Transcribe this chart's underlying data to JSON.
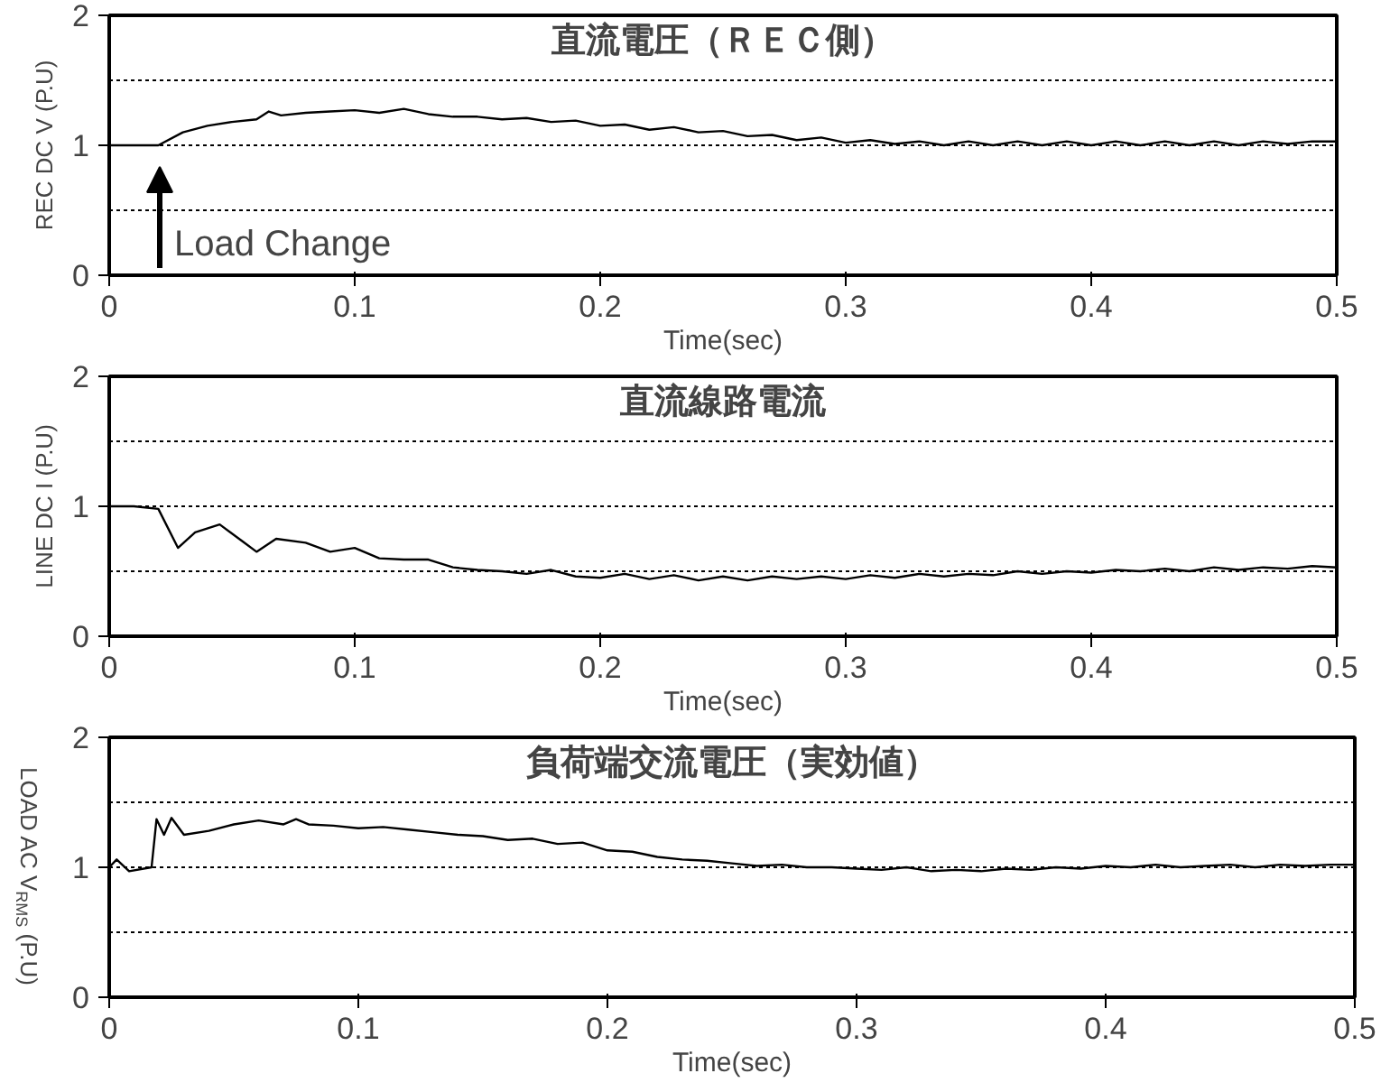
{
  "chart_data": [
    {
      "type": "line",
      "title": "直流電圧（ＲＥＣ側）",
      "xlabel": "Time(sec)",
      "ylabel": "REC DC V (P.U)",
      "color": "#000000",
      "xlim": [
        0,
        0.5
      ],
      "ylim": [
        0,
        2
      ],
      "xticks": [
        0,
        0.1,
        0.2,
        0.3,
        0.4,
        0.5
      ],
      "yticks": [
        0,
        1,
        2
      ],
      "grid": "y",
      "annotations": [
        "Load Change"
      ],
      "ref_lines": [
        {
          "axis": "y",
          "value": 0.5,
          "line_style": "dotted"
        },
        {
          "axis": "y",
          "value": 1.5,
          "line_style": "dotted"
        }
      ],
      "x": [
        0,
        0.01,
        0.02,
        0.03,
        0.04,
        0.05,
        0.06,
        0.065,
        0.07,
        0.08,
        0.09,
        0.1,
        0.11,
        0.12,
        0.13,
        0.14,
        0.15,
        0.16,
        0.17,
        0.18,
        0.19,
        0.2,
        0.21,
        0.22,
        0.23,
        0.24,
        0.25,
        0.26,
        0.27,
        0.28,
        0.29,
        0.3,
        0.31,
        0.32,
        0.33,
        0.34,
        0.35,
        0.36,
        0.37,
        0.38,
        0.39,
        0.4,
        0.41,
        0.42,
        0.43,
        0.44,
        0.45,
        0.46,
        0.47,
        0.48,
        0.49,
        0.5
      ],
      "values": [
        1.0,
        1.0,
        1.0,
        1.1,
        1.15,
        1.18,
        1.2,
        1.26,
        1.23,
        1.25,
        1.26,
        1.27,
        1.25,
        1.28,
        1.24,
        1.22,
        1.22,
        1.2,
        1.21,
        1.18,
        1.19,
        1.15,
        1.16,
        1.12,
        1.14,
        1.1,
        1.11,
        1.07,
        1.08,
        1.04,
        1.06,
        1.02,
        1.04,
        1.01,
        1.03,
        1.0,
        1.03,
        1.0,
        1.03,
        1.0,
        1.03,
        1.0,
        1.03,
        1.0,
        1.03,
        1.0,
        1.03,
        1.0,
        1.03,
        1.01,
        1.03,
        1.03
      ]
    },
    {
      "type": "line",
      "title": "直流線路電流",
      "xlabel": "Time(sec)",
      "ylabel": "LINE DC I (P.U)",
      "color": "#000000",
      "xlim": [
        0,
        0.5
      ],
      "ylim": [
        0,
        2
      ],
      "xticks": [
        0,
        0.1,
        0.2,
        0.3,
        0.4,
        0.5
      ],
      "yticks": [
        0,
        1,
        2
      ],
      "grid": "y",
      "ref_lines": [
        {
          "axis": "y",
          "value": 0.5,
          "line_style": "dotted"
        },
        {
          "axis": "y",
          "value": 1.5,
          "line_style": "dotted"
        }
      ],
      "x": [
        0,
        0.01,
        0.02,
        0.028,
        0.035,
        0.045,
        0.055,
        0.06,
        0.068,
        0.08,
        0.09,
        0.1,
        0.11,
        0.12,
        0.13,
        0.14,
        0.15,
        0.16,
        0.17,
        0.18,
        0.19,
        0.2,
        0.21,
        0.22,
        0.23,
        0.24,
        0.25,
        0.26,
        0.27,
        0.28,
        0.29,
        0.3,
        0.31,
        0.32,
        0.33,
        0.34,
        0.35,
        0.36,
        0.37,
        0.38,
        0.39,
        0.4,
        0.41,
        0.42,
        0.43,
        0.44,
        0.45,
        0.46,
        0.47,
        0.48,
        0.49,
        0.5
      ],
      "values": [
        1.0,
        1.0,
        0.98,
        0.68,
        0.8,
        0.86,
        0.72,
        0.65,
        0.75,
        0.72,
        0.65,
        0.68,
        0.6,
        0.59,
        0.59,
        0.53,
        0.51,
        0.5,
        0.48,
        0.51,
        0.46,
        0.45,
        0.48,
        0.44,
        0.47,
        0.43,
        0.46,
        0.43,
        0.46,
        0.44,
        0.46,
        0.44,
        0.47,
        0.45,
        0.48,
        0.46,
        0.48,
        0.47,
        0.5,
        0.48,
        0.5,
        0.49,
        0.51,
        0.5,
        0.52,
        0.5,
        0.53,
        0.51,
        0.53,
        0.52,
        0.54,
        0.53
      ]
    },
    {
      "type": "line",
      "title": "負荷端交流電圧（実効値）",
      "xlabel": "Time(sec)",
      "ylabel": "LOAD AC V$_{RMS}$ (P.U)",
      "color": "#000000",
      "xlim": [
        0,
        0.5
      ],
      "ylim": [
        0,
        2
      ],
      "xticks": [
        0,
        0.1,
        0.2,
        0.3,
        0.4,
        0.5
      ],
      "yticks": [
        0,
        1,
        2
      ],
      "grid": "y",
      "ref_lines": [
        {
          "axis": "y",
          "value": 0.5,
          "line_style": "dotted"
        },
        {
          "axis": "y",
          "value": 1.5,
          "line_style": "dotted"
        }
      ],
      "x": [
        0,
        0.003,
        0.008,
        0.017,
        0.019,
        0.022,
        0.025,
        0.03,
        0.04,
        0.05,
        0.06,
        0.07,
        0.075,
        0.08,
        0.09,
        0.1,
        0.11,
        0.12,
        0.13,
        0.14,
        0.15,
        0.16,
        0.17,
        0.18,
        0.19,
        0.2,
        0.21,
        0.22,
        0.23,
        0.24,
        0.25,
        0.26,
        0.27,
        0.28,
        0.29,
        0.3,
        0.31,
        0.32,
        0.33,
        0.34,
        0.35,
        0.36,
        0.37,
        0.38,
        0.39,
        0.4,
        0.41,
        0.42,
        0.43,
        0.44,
        0.45,
        0.46,
        0.47,
        0.48,
        0.49,
        0.5
      ],
      "values": [
        1.0,
        1.06,
        0.97,
        1.0,
        1.37,
        1.25,
        1.38,
        1.25,
        1.28,
        1.33,
        1.36,
        1.33,
        1.37,
        1.33,
        1.32,
        1.3,
        1.31,
        1.29,
        1.27,
        1.25,
        1.24,
        1.21,
        1.22,
        1.18,
        1.19,
        1.13,
        1.12,
        1.08,
        1.06,
        1.05,
        1.03,
        1.01,
        1.02,
        1.0,
        1.0,
        0.99,
        0.98,
        1.0,
        0.97,
        0.98,
        0.97,
        0.99,
        0.98,
        1.0,
        0.99,
        1.01,
        1.0,
        1.02,
        1.0,
        1.01,
        1.02,
        1.0,
        1.02,
        1.01,
        1.02,
        1.02
      ]
    }
  ]
}
